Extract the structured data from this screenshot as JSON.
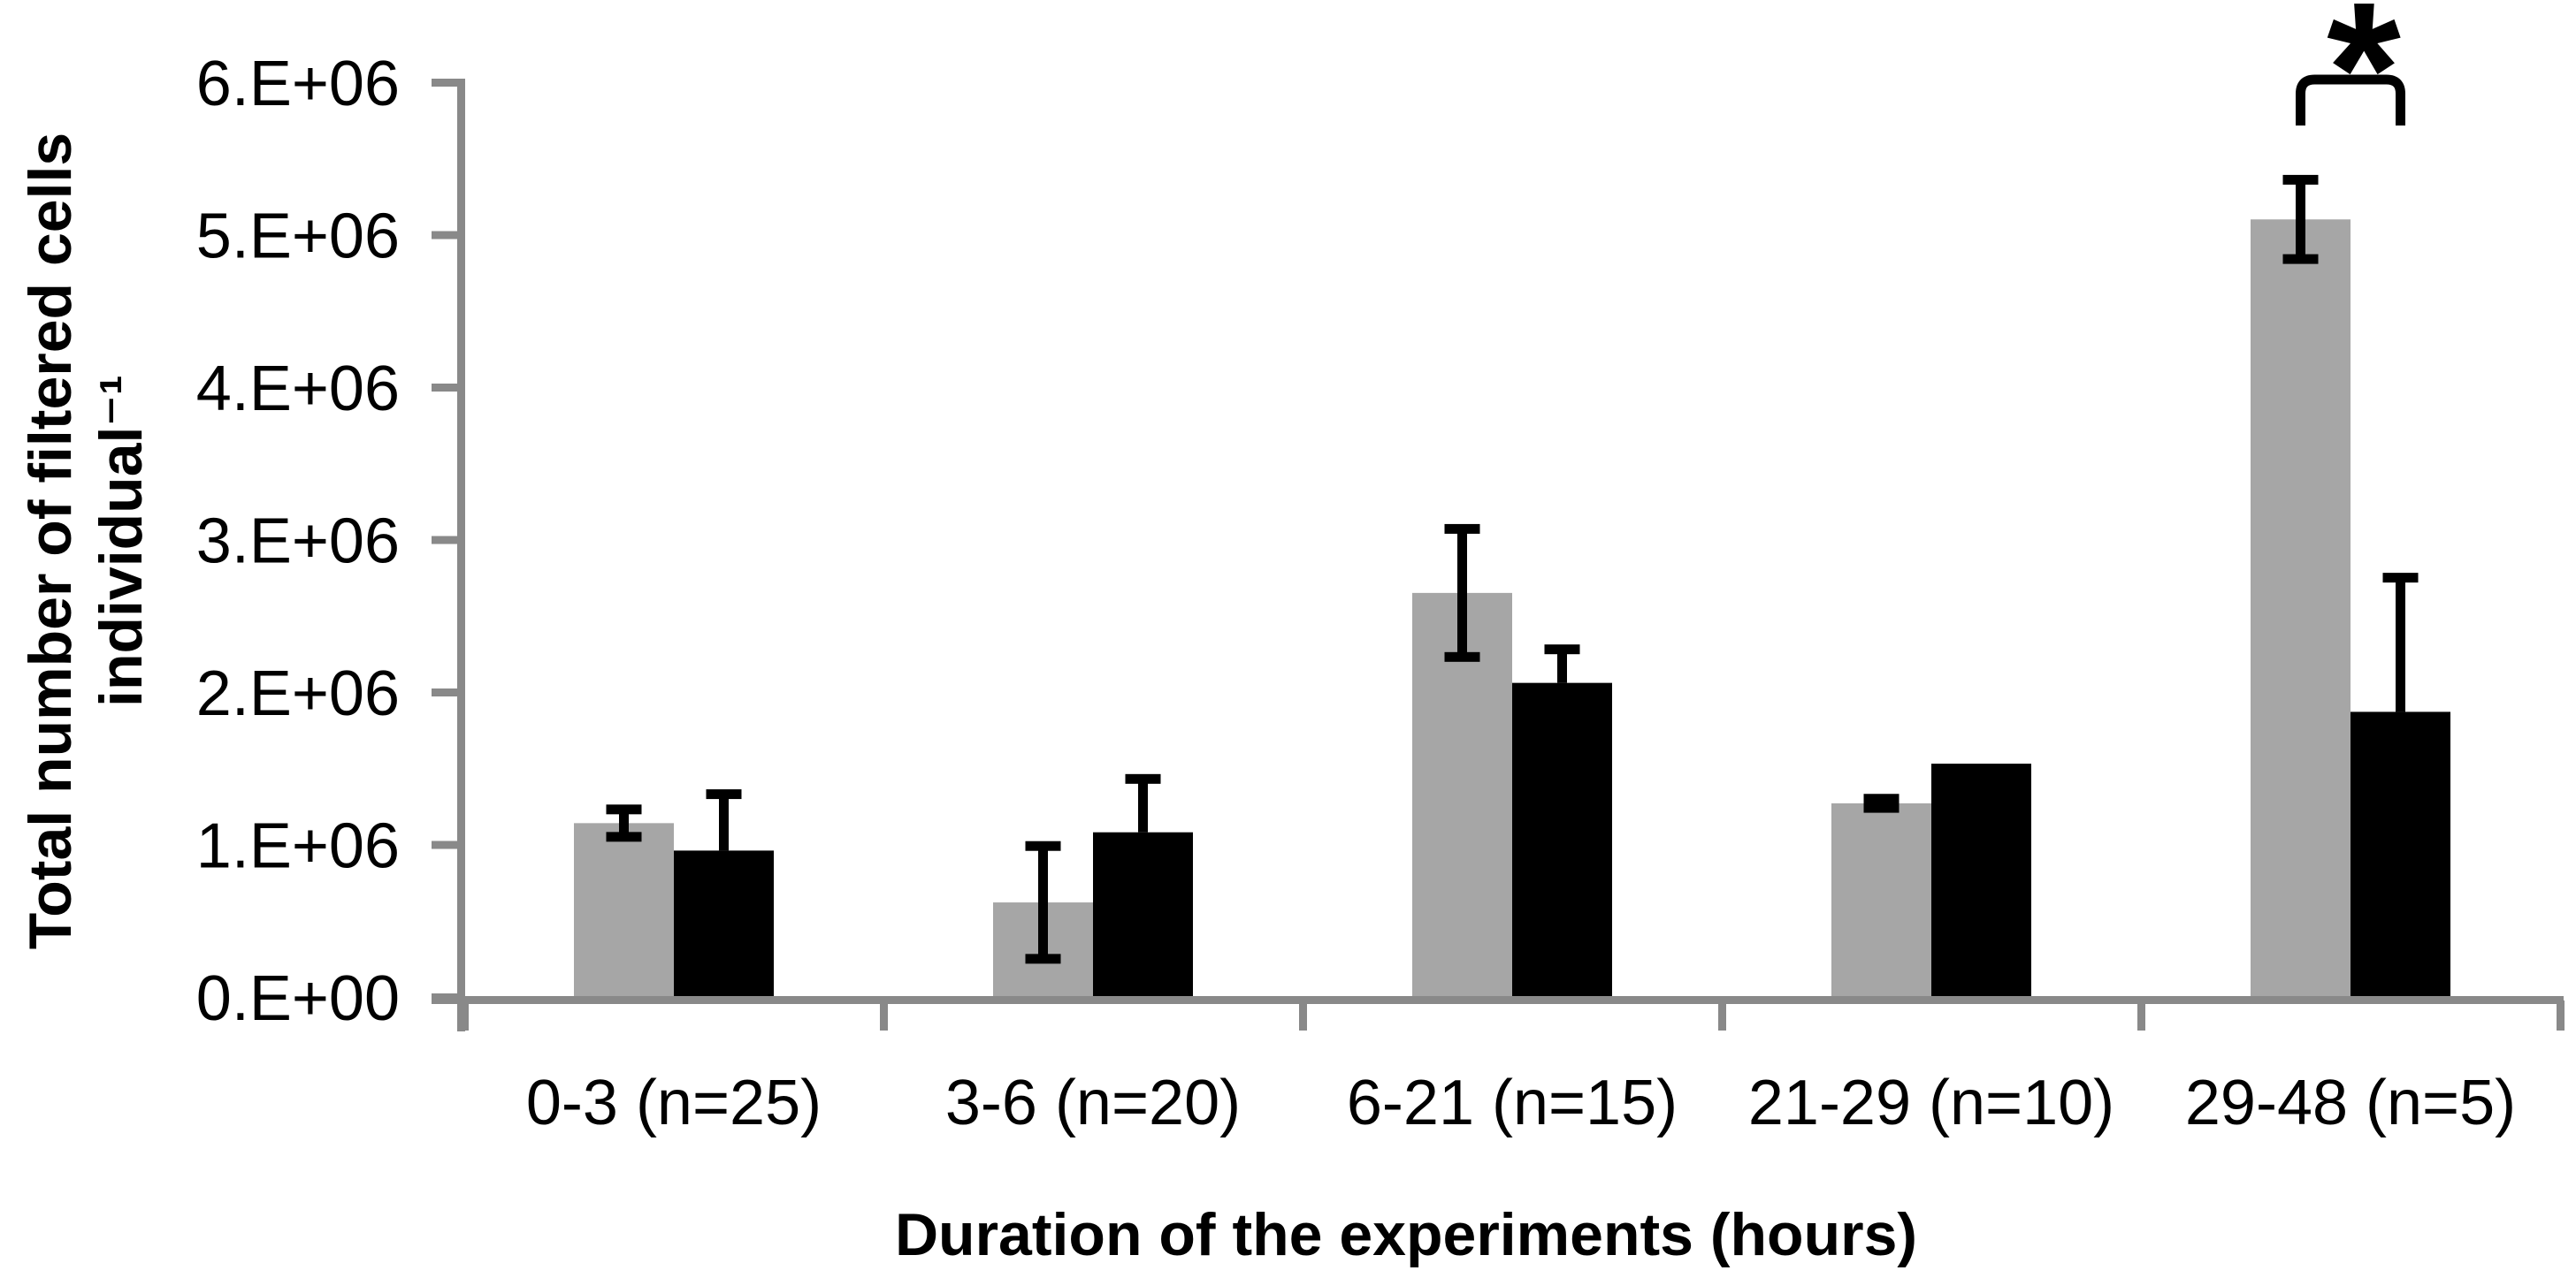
{
  "chart_data": {
    "type": "bar",
    "title": "",
    "categories": [
      "0-3 (n=25)",
      "3-6 (n=20)",
      "6-21 (n=15)",
      "21-29 (n=10)",
      "29-48 (n=5)"
    ],
    "series": [
      {
        "name": "gray",
        "color": "#A6A6A6",
        "values": [
          1140000,
          620000,
          2650000,
          1270000,
          5100000
        ],
        "errors": [
          90000,
          370000,
          420000,
          30000,
          260000
        ],
        "error_style": "both"
      },
      {
        "name": "black",
        "color": "#000000",
        "values": [
          960000,
          1080000,
          2060000,
          1530000,
          1870000
        ],
        "errors": [
          370000,
          350000,
          220000,
          0,
          880000
        ],
        "error_style": "upper"
      }
    ],
    "ylabel_line1": "Total number of filtered cells",
    "ylabel_line2": "individual⁻¹",
    "xlabel": "Duration of the experiments (hours)",
    "y_ticks": [
      "0.E+00",
      "1.E+06",
      "2.E+06",
      "3.E+06",
      "4.E+06",
      "5.E+06",
      "6.E+06"
    ],
    "ylim": [
      0,
      6000000
    ],
    "grid": false,
    "legend": "none",
    "axis_color": "#898989",
    "significance": {
      "label": "*",
      "category_index": 4,
      "between": [
        "gray",
        "black"
      ]
    }
  }
}
